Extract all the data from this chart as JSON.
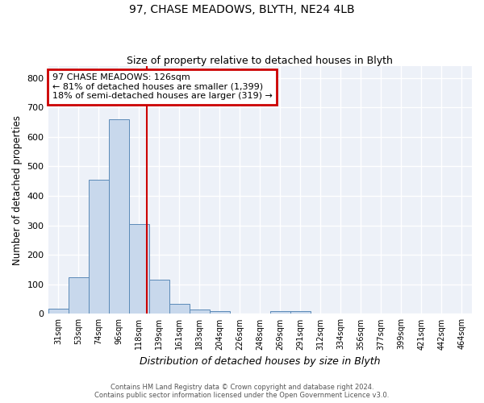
{
  "title": "97, CHASE MEADOWS, BLYTH, NE24 4LB",
  "subtitle": "Size of property relative to detached houses in Blyth",
  "xlabel": "Distribution of detached houses by size in Blyth",
  "ylabel": "Number of detached properties",
  "bar_color": "#c8d8ec",
  "bar_edgecolor": "#5b8ab8",
  "background_color": "#edf1f8",
  "grid_color": "white",
  "categories": [
    "31sqm",
    "53sqm",
    "74sqm",
    "96sqm",
    "118sqm",
    "139sqm",
    "161sqm",
    "183sqm",
    "204sqm",
    "226sqm",
    "248sqm",
    "269sqm",
    "291sqm",
    "312sqm",
    "334sqm",
    "356sqm",
    "377sqm",
    "399sqm",
    "421sqm",
    "442sqm",
    "464sqm"
  ],
  "values": [
    18,
    125,
    455,
    660,
    305,
    115,
    35,
    14,
    10,
    0,
    0,
    10,
    10,
    0,
    0,
    0,
    0,
    0,
    0,
    0,
    0
  ],
  "annotation_line1": "97 CHASE MEADOWS: 126sqm",
  "annotation_line2": "← 81% of detached houses are smaller (1,399)",
  "annotation_line3": "18% of semi-detached houses are larger (319) →",
  "annotation_box_color": "#cc0000",
  "ylim": [
    0,
    840
  ],
  "yticks": [
    0,
    100,
    200,
    300,
    400,
    500,
    600,
    700,
    800
  ],
  "footer_line1": "Contains HM Land Registry data © Crown copyright and database right 2024.",
  "footer_line2": "Contains public sector information licensed under the Open Government Licence v3.0."
}
